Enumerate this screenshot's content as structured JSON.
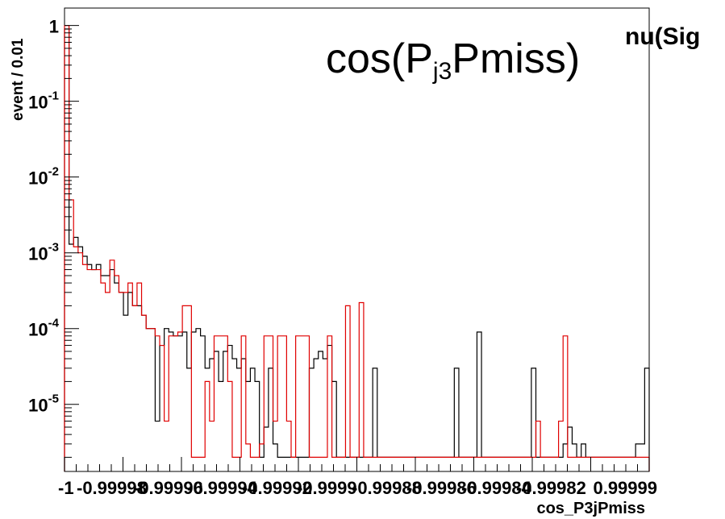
{
  "chart_data": {
    "type": "line",
    "title_main": "cos(P",
    "title_sub": "j3",
    "title_end": "Pmiss)",
    "stat_box_text": "nu(Sig",
    "xlabel": "cos_P3jPmiss",
    "ylabel": "event / 0.01",
    "y_scale": "log",
    "xlim": [
      -1,
      0.99999
    ],
    "ylim": [
      1.3e-06,
      1.7
    ],
    "y_ticks": [
      {
        "value": 1,
        "base": "1",
        "exp": ""
      },
      {
        "value": 0.1,
        "base": "10",
        "exp": "-1"
      },
      {
        "value": 0.01,
        "base": "10",
        "exp": "-2"
      },
      {
        "value": 0.001,
        "base": "10",
        "exp": "-3"
      },
      {
        "value": 0.0001,
        "base": "10",
        "exp": "-4"
      },
      {
        "value": 1e-05,
        "base": "10",
        "exp": "-5"
      }
    ],
    "x_tick_labels": [
      "-1",
      "-0.99998",
      "-0.99996",
      "-0.99994",
      "-0.99992",
      "-0.9999",
      "-0.99988",
      "-0.99986",
      "-0.99984",
      "-0.99982",
      "0.99999"
    ],
    "grid": false,
    "series": [
      {
        "color": "#000000",
        "values": [
          0.9,
          0.0013,
          0.0016,
          0.0012,
          0.0009,
          0.0007,
          0.0006,
          0.0007,
          0.0005,
          0.0005,
          0.0006,
          0.0004,
          0.0003,
          0.00015,
          0.0003,
          0.0002,
          0.0002,
          0.00015,
          0.0001,
          0.0001,
          6e-06,
          6e-05,
          0.0001,
          9e-05,
          8e-05,
          8e-05,
          9e-05,
          3e-05,
          9e-05,
          0.0001,
          8e-05,
          3e-05,
          4e-05,
          5e-05,
          2e-05,
          5e-05,
          6e-05,
          4e-05,
          3e-05,
          4e-05,
          2e-05,
          3e-05,
          2e-05,
          2e-06,
          5e-06,
          3e-05,
          3e-06,
          2e-06,
          2e-06,
          2e-06,
          2e-06,
          2e-06,
          2e-06,
          2e-06,
          3e-05,
          4e-05,
          5e-05,
          4e-05,
          6e-05,
          2e-05,
          2e-06,
          2e-06,
          2e-06,
          2e-06,
          2e-06,
          2e-06,
          2e-06,
          2e-06,
          3e-05,
          2e-06,
          2e-06,
          2e-06,
          2e-06,
          2e-06,
          2e-06,
          2e-06,
          2e-06,
          2e-06,
          2e-06,
          2e-06,
          2e-06,
          2e-06,
          2e-06,
          2e-06,
          2e-06,
          2e-06,
          3e-05,
          2e-06,
          2e-06,
          2e-06,
          2e-06,
          9e-05,
          2e-06,
          2e-06,
          2e-06,
          2e-06,
          2e-06,
          2e-06,
          2e-06,
          2e-06,
          2e-06,
          2e-06,
          2e-06,
          3e-05,
          2e-06,
          2e-06,
          2e-06,
          2e-06,
          2e-06,
          2e-06,
          3e-06,
          5e-06,
          3e-06,
          2e-06,
          3e-06,
          2e-06,
          2e-06,
          2e-06,
          2e-06,
          2e-06,
          2e-06,
          2e-06,
          2e-06,
          2e-06,
          2e-06,
          2e-06,
          3e-06,
          3e-06,
          3e-05
        ],
        "fill_to_floor": true
      },
      {
        "color": "#e00000",
        "values": [
          1.0,
          0.005,
          0.0012,
          0.001,
          0.0007,
          0.0006,
          0.0006,
          0.0006,
          0.0004,
          0.0003,
          0.0008,
          0.0005,
          0.0003,
          0.0003,
          0.0004,
          0.0002,
          0.0004,
          0.00015,
          0.0001,
          0.0001,
          8e-05,
          6e-05,
          6e-06,
          8e-05,
          8e-05,
          9e-05,
          0.0002,
          0.0002,
          2e-06,
          2e-06,
          2e-06,
          2e-05,
          6e-06,
          8e-05,
          8e-05,
          8e-05,
          2e-05,
          2e-06,
          2e-06,
          8e-05,
          3e-06,
          2e-06,
          2e-06,
          3e-06,
          8e-05,
          8e-05,
          6e-06,
          8e-05,
          8e-05,
          6e-06,
          2e-06,
          8e-05,
          8e-05,
          8e-05,
          2e-06,
          2e-06,
          2e-06,
          2e-06,
          8e-05,
          2e-06,
          2e-06,
          2e-06,
          0.0002,
          2e-06,
          2e-06,
          0.00022,
          2e-06,
          2e-06,
          2e-06,
          2e-06,
          2e-06,
          2e-06,
          2e-06,
          2e-06,
          2e-06,
          2e-06,
          2e-06,
          2e-06,
          2e-06,
          2e-06,
          2e-06,
          2e-06,
          2e-06,
          2e-06,
          2e-06,
          2e-06,
          2e-06,
          2e-06,
          2e-06,
          2e-06,
          2e-06,
          2e-06,
          2e-06,
          2e-06,
          2e-06,
          2e-06,
          2e-06,
          2e-06,
          2e-06,
          2e-06,
          2e-06,
          2e-06,
          2e-06,
          2e-06,
          6e-06,
          2e-06,
          2e-06,
          2e-06,
          2e-06,
          6e-06,
          8e-05,
          2e-06,
          2e-06,
          2e-06,
          2e-06,
          2e-06,
          2e-06,
          2e-06,
          2e-06,
          2e-06,
          2e-06,
          2e-06,
          2e-06,
          2e-06,
          2e-06,
          2e-06,
          2e-06,
          2e-06,
          2e-06
        ],
        "fill_to_floor": true
      }
    ]
  }
}
